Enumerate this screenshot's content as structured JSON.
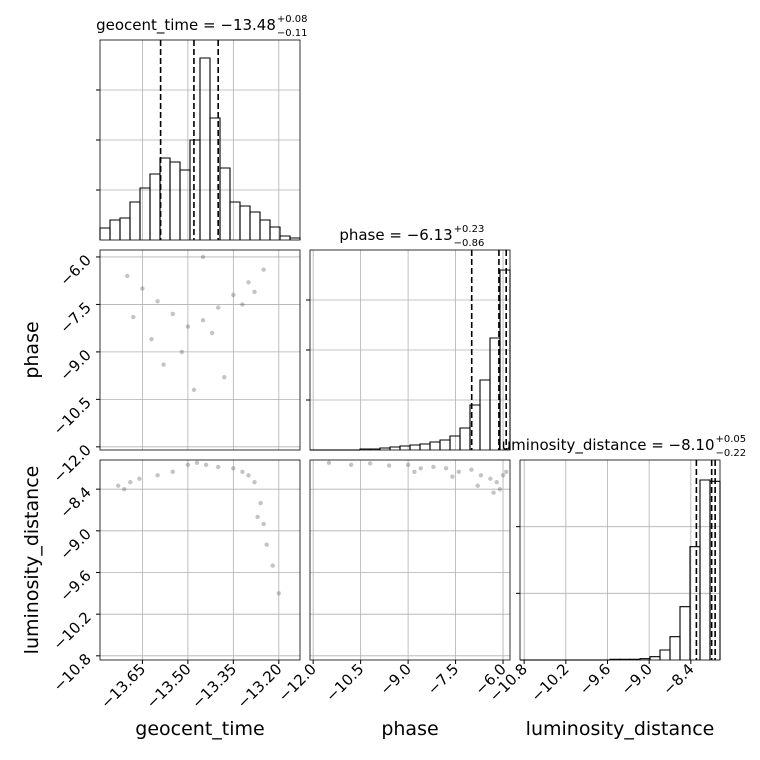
{
  "chart_data": {
    "type": "corner",
    "grid": true,
    "color": "#000000",
    "parameters": [
      {
        "name": "geocent_time",
        "title": "geocent_time = −13.48",
        "sup": "+0.08",
        "sub": "−0.11",
        "lim": [
          -13.79,
          -13.13
        ],
        "ticks": [
          {
            "value": -13.65,
            "label": "−13.65"
          },
          {
            "value": -13.5,
            "label": "−13.50"
          },
          {
            "value": -13.35,
            "label": "−13.35"
          },
          {
            "value": -13.2,
            "label": "−13.20"
          }
        ],
        "bins": [
          -13.79,
          -13.757,
          -13.724,
          -13.691,
          -13.658,
          -13.625,
          -13.592,
          -13.559,
          -13.526,
          -13.493,
          -13.46,
          -13.427,
          -13.394,
          -13.361,
          -13.328,
          -13.295,
          -13.262,
          -13.229,
          -13.196,
          -13.163,
          -13.13
        ],
        "counts": [
          12,
          20,
          22,
          38,
          52,
          66,
          82,
          78,
          70,
          100,
          182,
          122,
          72,
          38,
          34,
          28,
          20,
          13,
          4,
          2
        ],
        "hist_ylim": [
          0,
          200
        ],
        "hist_yticks": [
          50,
          100,
          150
        ],
        "quantiles": [
          -13.59,
          -13.48,
          -13.4
        ]
      },
      {
        "name": "phase",
        "title": "phase = −6.13",
        "sup": "+0.23",
        "sub": "−0.86",
        "lim": [
          -12.1,
          -5.78
        ],
        "ticks": [
          {
            "value": -12.0,
            "label": "−12.0"
          },
          {
            "value": -10.5,
            "label": "−10.5"
          },
          {
            "value": -9.0,
            "label": "−9.0"
          },
          {
            "value": -7.5,
            "label": "−7.5"
          },
          {
            "value": -6.0,
            "label": "−6.0"
          }
        ],
        "bins": [
          -12.1,
          -11.784,
          -11.468,
          -11.152,
          -10.836,
          -10.52,
          -10.204,
          -9.888,
          -9.572,
          -9.256,
          -8.94,
          -8.624,
          -8.308,
          -7.992,
          -7.676,
          -7.36,
          -7.044,
          -6.728,
          -6.412,
          -6.096,
          -5.78
        ],
        "counts": [
          0,
          0,
          0,
          0,
          0,
          1,
          1,
          2,
          3,
          4,
          5,
          6,
          8,
          10,
          14,
          22,
          45,
          70,
          112,
          180
        ],
        "hist_ylim": [
          0,
          200
        ],
        "hist_yticks": [
          50,
          100,
          150
        ],
        "quantiles": [
          -6.99,
          -6.13,
          -5.9
        ]
      },
      {
        "name": "luminosity_distance",
        "title": "luminosity_distance = −8.10",
        "sup": "+0.05",
        "sub": "−0.22",
        "lim": [
          -10.86,
          -7.98
        ],
        "ticks": [
          {
            "value": -10.8,
            "label": "−10.8"
          },
          {
            "value": -10.2,
            "label": "−10.2"
          },
          {
            "value": -9.6,
            "label": "−9.6"
          },
          {
            "value": -9.0,
            "label": "−9.0"
          },
          {
            "value": -8.4,
            "label": "−8.4"
          }
        ],
        "bins": [
          -10.86,
          -10.716,
          -10.572,
          -10.428,
          -10.284,
          -10.14,
          -9.996,
          -9.852,
          -9.708,
          -9.564,
          -9.42,
          -9.276,
          -9.132,
          -8.988,
          -8.844,
          -8.7,
          -8.556,
          -8.412,
          -8.268,
          -8.124,
          -7.98
        ],
        "counts": [
          0,
          0,
          0,
          0,
          0,
          0,
          0,
          0,
          0,
          1,
          1,
          1,
          2,
          5,
          15,
          35,
          80,
          170,
          270,
          268
        ],
        "hist_ylim": [
          0,
          300
        ],
        "hist_yticks": [
          100,
          200
        ],
        "quantiles": [
          -8.32,
          -8.1,
          -8.05
        ]
      }
    ],
    "scatter": [
      {
        "x": [
          -13.7,
          -13.65,
          -13.6,
          -13.55,
          -13.5,
          -13.45,
          -13.4,
          -13.35,
          -13.3,
          -13.25,
          -13.62,
          -13.52,
          -13.42,
          -13.32,
          -13.58,
          -13.48,
          -13.38,
          -13.68,
          -13.28,
          -13.45
        ],
        "y": [
          -6.6,
          -7.0,
          -7.4,
          -7.8,
          -8.2,
          -8.0,
          -7.6,
          -7.2,
          -6.8,
          -6.4,
          -8.6,
          -9.0,
          -8.4,
          -7.5,
          -9.4,
          -10.2,
          -9.8,
          -7.9,
          -7.1,
          -6.0
        ]
      },
      {
        "x": [
          -13.73,
          -13.71,
          -13.69,
          -13.66,
          -13.6,
          -13.55,
          -13.5,
          -13.47,
          -13.44,
          -13.4,
          -13.32,
          -13.3,
          -13.28,
          -13.26,
          -13.25,
          -13.24,
          -13.22,
          -13.27,
          -13.2,
          -13.35
        ],
        "y": [
          -8.35,
          -8.4,
          -8.3,
          -8.25,
          -8.2,
          -8.15,
          -8.05,
          -8.02,
          -8.05,
          -8.08,
          -8.15,
          -8.2,
          -8.3,
          -8.6,
          -8.9,
          -9.2,
          -9.5,
          -8.8,
          -9.9,
          -8.1
        ]
      },
      {
        "x": [
          -11.5,
          -10.8,
          -10.2,
          -9.6,
          -9.0,
          -8.6,
          -8.2,
          -7.8,
          -7.4,
          -7.0,
          -6.7,
          -6.4,
          -6.2,
          -6.0,
          -5.9,
          -6.8,
          -7.6,
          -8.8,
          -6.3,
          -6.1
        ],
        "y": [
          -8.02,
          -8.05,
          -8.03,
          -8.06,
          -8.05,
          -8.1,
          -8.08,
          -8.1,
          -8.15,
          -8.12,
          -8.2,
          -8.25,
          -8.3,
          -8.2,
          -8.15,
          -8.35,
          -8.22,
          -8.15,
          -8.45,
          -8.4
        ]
      }
    ]
  }
}
